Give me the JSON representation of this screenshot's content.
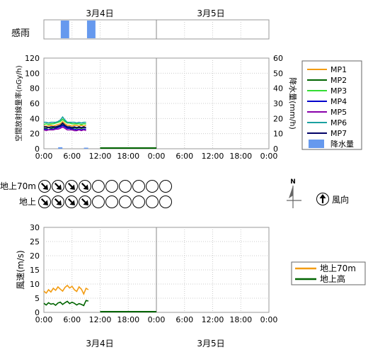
{
  "dates": [
    "3月4日",
    "3月5日"
  ],
  "rain_sense": {
    "label": "感雨",
    "rain_intervals_hours": [
      [
        3.6,
        5.4
      ],
      [
        9.2,
        11.0
      ]
    ]
  },
  "time_ticks": [
    "0:00",
    "6:00",
    "12:00",
    "18:00",
    "0:00",
    "6:00",
    "12:00",
    "18:00",
    "0:00"
  ],
  "radiation_chart": {
    "ylabel": "空間放射線量率(nGy/h)",
    "y2label": "降水量(mm/h)",
    "ylim": [
      0,
      120
    ],
    "y_ticks": [
      "0",
      "20",
      "40",
      "60",
      "80",
      "100",
      "120"
    ],
    "y2lim": [
      0,
      60
    ],
    "y2_ticks": [
      "0",
      "10",
      "20",
      "30",
      "40",
      "50",
      "60"
    ],
    "legend": [
      "MP1",
      "MP2",
      "MP3",
      "MP4",
      "MP5",
      "MP6",
      "MP7",
      "降水量"
    ]
  },
  "wind_dir": {
    "rows": [
      "地上70m",
      "地上"
    ],
    "legend_label": "風向",
    "compass_label": "N",
    "slots": 10,
    "filled": 4,
    "arrow_direction": "southeast"
  },
  "wind_speed_chart": {
    "ylabel": "風速(m/s)",
    "ylim": [
      0,
      30
    ],
    "y_ticks": [
      "0",
      "5",
      "10",
      "15",
      "20",
      "25",
      "30"
    ],
    "legend": [
      "地上70m",
      "地上高"
    ]
  },
  "chart_data": [
    {
      "type": "line",
      "title": "",
      "xlabel": "",
      "ylabel": "空間放射線量率(nGy/h)",
      "xlim_hours": [
        0,
        48
      ],
      "ylim": [
        0,
        120
      ],
      "x_hours": [
        0,
        0.5,
        1,
        1.5,
        2,
        2.5,
        3,
        3.5,
        4,
        4.5,
        5,
        5.5,
        6,
        6.5,
        7,
        7.5,
        8,
        8.5,
        9
      ],
      "series": [
        {
          "name": "MP1",
          "color": "#f39c12",
          "values": [
            30,
            30,
            30,
            31,
            30,
            31,
            32,
            33,
            36,
            33,
            31,
            31,
            30,
            31,
            31,
            30,
            31,
            30,
            31
          ]
        },
        {
          "name": "MP2",
          "color": "#006400",
          "values": [
            27,
            27,
            28,
            27,
            28,
            28,
            29,
            30,
            32,
            30,
            28,
            28,
            27,
            28,
            27,
            28,
            27,
            28,
            28
          ]
        },
        {
          "name": "MP3",
          "color": "#33dd33",
          "values": [
            32,
            33,
            32,
            33,
            33,
            34,
            35,
            36,
            39,
            36,
            34,
            34,
            33,
            33,
            33,
            33,
            32,
            33,
            33
          ]
        },
        {
          "name": "MP4",
          "color": "#0000cc",
          "values": [
            26,
            26,
            25,
            26,
            26,
            27,
            28,
            29,
            31,
            29,
            27,
            27,
            26,
            26,
            25,
            26,
            25,
            26,
            26
          ]
        },
        {
          "name": "MP5",
          "color": "#8800aa",
          "values": [
            25,
            24,
            25,
            25,
            25,
            26,
            26,
            27,
            29,
            27,
            25,
            25,
            25,
            24,
            24,
            25,
            24,
            25,
            24
          ]
        },
        {
          "name": "MP6",
          "color": "#1aa0a0",
          "values": [
            35,
            35,
            34,
            35,
            35,
            35,
            36,
            38,
            42,
            38,
            35,
            35,
            35,
            35,
            34,
            35,
            34,
            35,
            35
          ]
        },
        {
          "name": "MP7",
          "color": "#000066",
          "values": [
            29,
            29,
            28,
            29,
            29,
            29,
            30,
            31,
            34,
            31,
            29,
            29,
            28,
            29,
            28,
            29,
            28,
            29,
            28
          ]
        }
      ],
      "precipitation": {
        "name": "降水量",
        "color": "#6699ee",
        "ylim": [
          0,
          60
        ],
        "bars": [
          {
            "x_hours": 3.5,
            "value": 1
          },
          {
            "x_hours": 9,
            "value": 0.6
          }
        ]
      },
      "flat_segment": {
        "x_hours": [
          12,
          24
        ],
        "value": 0,
        "color": "#006400"
      }
    },
    {
      "type": "line",
      "title": "",
      "xlabel": "",
      "ylabel": "風速(m/s)",
      "xlim_hours": [
        0,
        48
      ],
      "ylim": [
        0,
        30
      ],
      "x_hours": [
        0,
        0.5,
        1,
        1.5,
        2,
        2.5,
        3,
        3.5,
        4,
        4.5,
        5,
        5.5,
        6,
        6.5,
        7,
        7.5,
        8,
        8.5,
        9,
        9.5
      ],
      "series": [
        {
          "name": "地上70m",
          "color": "#f39c12",
          "values": [
            7.5,
            6.8,
            8.0,
            7.2,
            8.5,
            7.8,
            9.0,
            8.2,
            7.5,
            8.8,
            9.5,
            8.6,
            9.2,
            8.0,
            7.4,
            9.0,
            8.2,
            6.5,
            8.5,
            8.0
          ]
        },
        {
          "name": "地上高",
          "color": "#006400",
          "values": [
            3.2,
            2.6,
            3.4,
            2.9,
            3.1,
            2.5,
            3.3,
            3.6,
            2.8,
            3.4,
            3.9,
            3.1,
            3.6,
            3.2,
            2.6,
            3.1,
            2.8,
            2.4,
            4.2,
            4.0
          ]
        }
      ],
      "flat_segment": {
        "x_hours": [
          12,
          24
        ],
        "value": 0,
        "color": "#006400"
      }
    }
  ]
}
